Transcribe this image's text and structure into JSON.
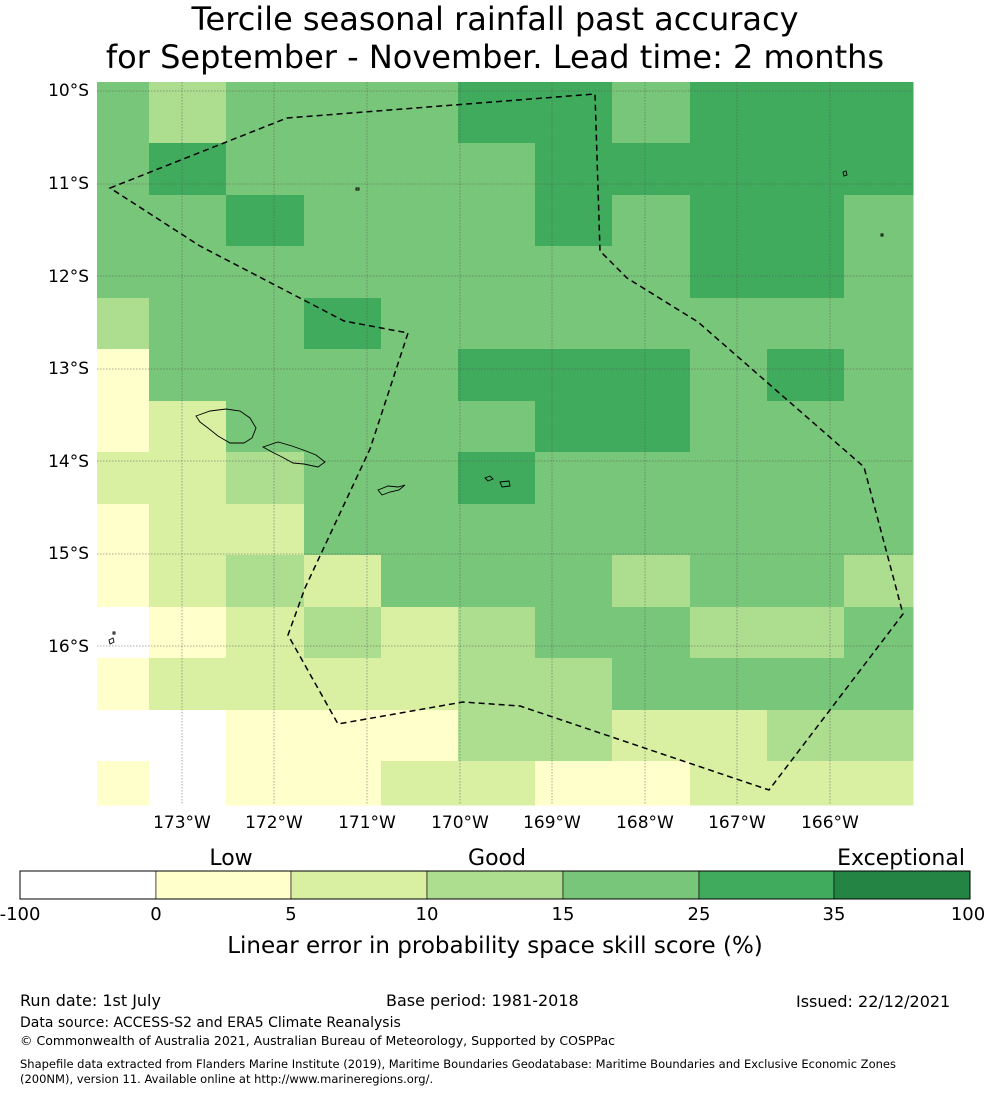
{
  "title": {
    "line1": "Tercile seasonal rainfall past accuracy",
    "line2": "for September - November. Lead time: 2 months"
  },
  "map": {
    "lat_labels": [
      "10°S",
      "11°S",
      "12°S",
      "13°S",
      "14°S",
      "15°S",
      "16°S"
    ],
    "lon_labels": [
      "173°W",
      "172°W",
      "171°W",
      "170°W",
      "169°W",
      "168°W",
      "167°W",
      "166°W"
    ],
    "grid_skill_category_rows_north_to_south": [
      [
        4,
        3,
        4,
        4,
        4,
        5,
        5,
        4,
        5,
        5,
        5
      ],
      [
        4,
        5,
        4,
        4,
        4,
        4,
        5,
        5,
        5,
        5,
        5
      ],
      [
        4,
        4,
        5,
        4,
        4,
        4,
        5,
        4,
        5,
        5,
        4
      ],
      [
        4,
        4,
        4,
        4,
        4,
        4,
        4,
        4,
        5,
        5,
        4
      ],
      [
        3,
        4,
        4,
        5,
        4,
        4,
        4,
        4,
        4,
        4,
        4
      ],
      [
        1,
        4,
        4,
        4,
        4,
        5,
        5,
        5,
        4,
        5,
        4
      ],
      [
        1,
        2,
        4,
        4,
        4,
        4,
        5,
        5,
        4,
        4,
        4
      ],
      [
        2,
        2,
        3,
        4,
        4,
        5,
        4,
        4,
        4,
        4,
        4
      ],
      [
        1,
        2,
        2,
        4,
        4,
        4,
        4,
        4,
        4,
        4,
        4
      ],
      [
        1,
        2,
        3,
        2,
        4,
        4,
        4,
        3,
        4,
        4,
        3
      ],
      [
        0,
        1,
        2,
        3,
        2,
        3,
        4,
        4,
        3,
        3,
        4
      ],
      [
        1,
        2,
        2,
        2,
        2,
        3,
        3,
        4,
        4,
        4,
        4
      ],
      [
        0,
        0,
        1,
        1,
        1,
        3,
        3,
        2,
        2,
        3,
        3
      ],
      [
        1,
        0,
        1,
        1,
        2,
        2,
        1,
        1,
        2,
        2,
        2
      ]
    ]
  },
  "colorbar": {
    "category_labels": [
      "Low",
      "Good",
      "Exceptional"
    ],
    "tick_labels": [
      "-100",
      "0",
      "5",
      "10",
      "15",
      "25",
      "35",
      "100"
    ],
    "colors": [
      "#ffffff",
      "#ffffcc",
      "#d9f0a3",
      "#addd8e",
      "#78c679",
      "#41ab5d",
      "#238443"
    ],
    "label": "Linear error in probability space skill score (%)"
  },
  "footer": {
    "run_date": "Run date: 1st July",
    "base_period": "Base period: 1981-2018",
    "issued": "Issued: 22/12/2021",
    "data_source": "Data source: ACCESS-S2 and ERA5 Climate Reanalysis",
    "copyright": "© Commonwealth of Australia 2021, Australian Bureau of Meteorology, Supported by COSPPac",
    "shapefile_line1": "Shapefile data extracted from Flanders Marine Institute (2019), Maritime Boundaries Geodatabase: Maritime Boundaries and Exclusive Economic Zones",
    "shapefile_line2": "(200NM), version 11. Available online at http://www.marineregions.org/."
  }
}
